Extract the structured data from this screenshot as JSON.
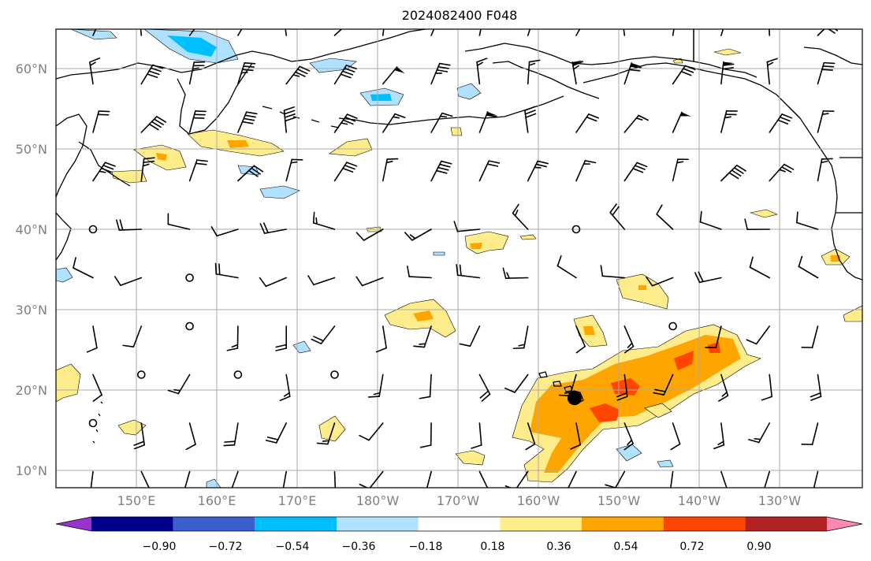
{
  "title": "2024082400 F048",
  "axes": {
    "lon_labels": [
      "150°E",
      "160°E",
      "170°E",
      "180°W",
      "170°W",
      "160°W",
      "150°W",
      "140°W",
      "130°W"
    ],
    "lat_labels": [
      "60°N",
      "50°N",
      "40°N",
      "30°N",
      "20°N",
      "10°N"
    ]
  },
  "colorbar": {
    "colors": [
      "#9a32cd",
      "#00008b",
      "#3a5fcd",
      "#00bfff",
      "#b0e2ff",
      "#ffffff",
      "#ffec8b",
      "#ffa500",
      "#ff4500",
      "#b22222",
      "#ff89b0"
    ],
    "labels": [
      "−0.90",
      "−0.72",
      "−0.54",
      "−0.36",
      "−0.18",
      "0.18",
      "0.36",
      "0.54",
      "0.72",
      "0.90"
    ]
  },
  "marker": {
    "lon": 204.5,
    "lat": 19.0,
    "color": "#000000"
  }
}
